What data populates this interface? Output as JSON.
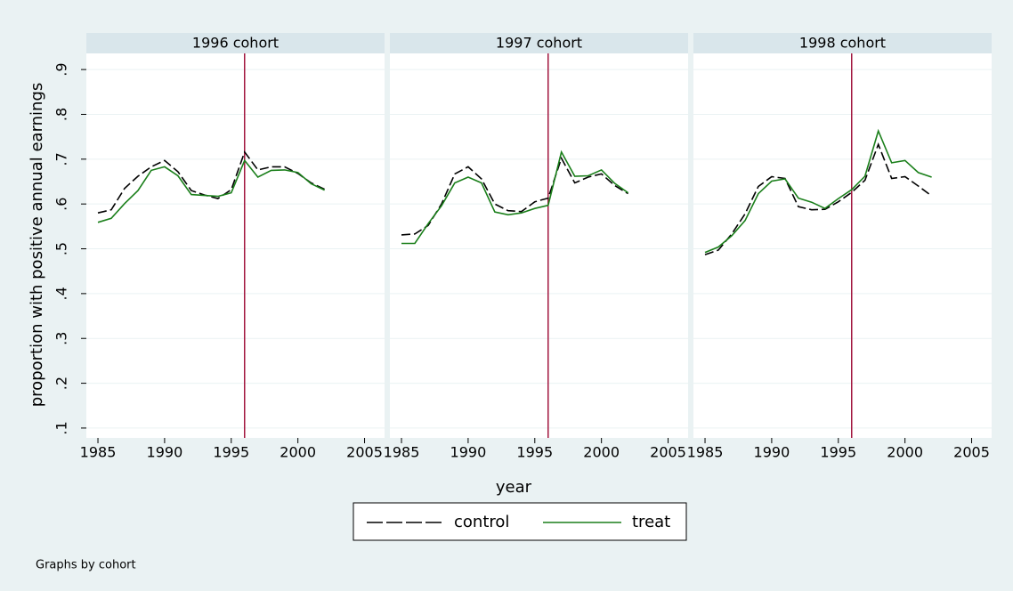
{
  "ylabel": "proportion with positive annual earnings",
  "xlabel": "year",
  "note": "Graphs by cohort",
  "chart_data": [
    {
      "type": "line",
      "title": "1996 cohort",
      "vline": 1996,
      "vline_color": "#a2163e",
      "xlim": [
        1984.13,
        2006.5
      ],
      "ylim": [
        0.078,
        0.936
      ],
      "xticks": [
        1985,
        1990,
        1995,
        2000,
        2005
      ],
      "yticks": [
        {
          "value": 0.1,
          "label": ".1"
        },
        {
          "value": 0.2,
          "label": ".2"
        },
        {
          "value": 0.3,
          "label": ".3"
        },
        {
          "value": 0.4,
          "label": ".4"
        },
        {
          "value": 0.5,
          "label": ".5"
        },
        {
          "value": 0.6,
          "label": ".6"
        },
        {
          "value": 0.7,
          "label": ".7"
        },
        {
          "value": 0.8,
          "label": ".8"
        },
        {
          "value": 0.9,
          "label": ".9"
        }
      ],
      "x": [
        1985,
        1986,
        1987,
        1988,
        1989,
        1990,
        1991,
        1992,
        1993,
        1994,
        1995,
        1996,
        1997,
        1998,
        1999,
        2000,
        2001,
        2002
      ],
      "series": [
        {
          "name": "control",
          "color": "#000000",
          "dash": true,
          "values": [
            0.58,
            0.587,
            0.635,
            0.662,
            0.683,
            0.697,
            0.672,
            0.63,
            0.62,
            0.612,
            0.632,
            0.716,
            0.676,
            0.683,
            0.683,
            0.668,
            0.647,
            0.633
          ]
        },
        {
          "name": "treat",
          "color": "#1a7f1a",
          "dash": false,
          "values": [
            0.559,
            0.568,
            0.601,
            0.63,
            0.675,
            0.683,
            0.663,
            0.621,
            0.619,
            0.617,
            0.625,
            0.697,
            0.66,
            0.675,
            0.676,
            0.67,
            0.645,
            0.631
          ]
        }
      ]
    },
    {
      "type": "line",
      "title": "1997 cohort",
      "vline": 1996,
      "vline_color": "#a2163e",
      "xlim": [
        1984.13,
        2006.5
      ],
      "ylim": [
        0.078,
        0.936
      ],
      "xticks": [
        1985,
        1990,
        1995,
        2000,
        2005
      ],
      "yticks": [
        {
          "value": 0.1,
          "label": ".1"
        },
        {
          "value": 0.2,
          "label": ".2"
        },
        {
          "value": 0.3,
          "label": ".3"
        },
        {
          "value": 0.4,
          "label": ".4"
        },
        {
          "value": 0.5,
          "label": ".5"
        },
        {
          "value": 0.6,
          "label": ".6"
        },
        {
          "value": 0.7,
          "label": ".7"
        },
        {
          "value": 0.8,
          "label": ".8"
        },
        {
          "value": 0.9,
          "label": ".9"
        }
      ],
      "x": [
        1985,
        1986,
        1987,
        1988,
        1989,
        1990,
        1991,
        1992,
        1993,
        1994,
        1995,
        1996,
        1997,
        1998,
        1999,
        2000,
        2001,
        2002
      ],
      "series": [
        {
          "name": "control",
          "color": "#000000",
          "dash": true,
          "values": [
            0.531,
            0.533,
            0.552,
            0.6,
            0.667,
            0.683,
            0.656,
            0.6,
            0.585,
            0.583,
            0.605,
            0.613,
            0.702,
            0.647,
            0.66,
            0.667,
            0.641,
            0.623
          ]
        },
        {
          "name": "treat",
          "color": "#1a7f1a",
          "dash": false,
          "values": [
            0.512,
            0.512,
            0.556,
            0.596,
            0.647,
            0.66,
            0.647,
            0.582,
            0.576,
            0.58,
            0.59,
            0.597,
            0.716,
            0.662,
            0.663,
            0.676,
            0.646,
            0.625
          ]
        }
      ]
    },
    {
      "type": "line",
      "title": "1998 cohort",
      "vline": 1996,
      "vline_color": "#a2163e",
      "xlim": [
        1984.13,
        2006.5
      ],
      "ylim": [
        0.078,
        0.936
      ],
      "xticks": [
        1985,
        1990,
        1995,
        2000,
        2005
      ],
      "yticks": [
        {
          "value": 0.1,
          "label": ".1"
        },
        {
          "value": 0.2,
          "label": ".2"
        },
        {
          "value": 0.3,
          "label": ".3"
        },
        {
          "value": 0.4,
          "label": ".4"
        },
        {
          "value": 0.5,
          "label": ".5"
        },
        {
          "value": 0.6,
          "label": ".6"
        },
        {
          "value": 0.7,
          "label": ".7"
        },
        {
          "value": 0.8,
          "label": ".8"
        },
        {
          "value": 0.9,
          "label": ".9"
        }
      ],
      "x": [
        1985,
        1986,
        1987,
        1988,
        1989,
        1990,
        1991,
        1992,
        1993,
        1994,
        1995,
        1996,
        1997,
        1998,
        1999,
        2000,
        2001,
        2002
      ],
      "series": [
        {
          "name": "control",
          "color": "#000000",
          "dash": true,
          "values": [
            0.487,
            0.497,
            0.533,
            0.578,
            0.639,
            0.661,
            0.657,
            0.594,
            0.587,
            0.588,
            0.605,
            0.626,
            0.653,
            0.733,
            0.657,
            0.661,
            0.64,
            0.618
          ]
        },
        {
          "name": "treat",
          "color": "#1a7f1a",
          "dash": false,
          "values": [
            0.492,
            0.504,
            0.529,
            0.563,
            0.623,
            0.651,
            0.656,
            0.613,
            0.604,
            0.59,
            0.612,
            0.632,
            0.662,
            0.763,
            0.692,
            0.697,
            0.67,
            0.66
          ]
        }
      ]
    }
  ]
}
